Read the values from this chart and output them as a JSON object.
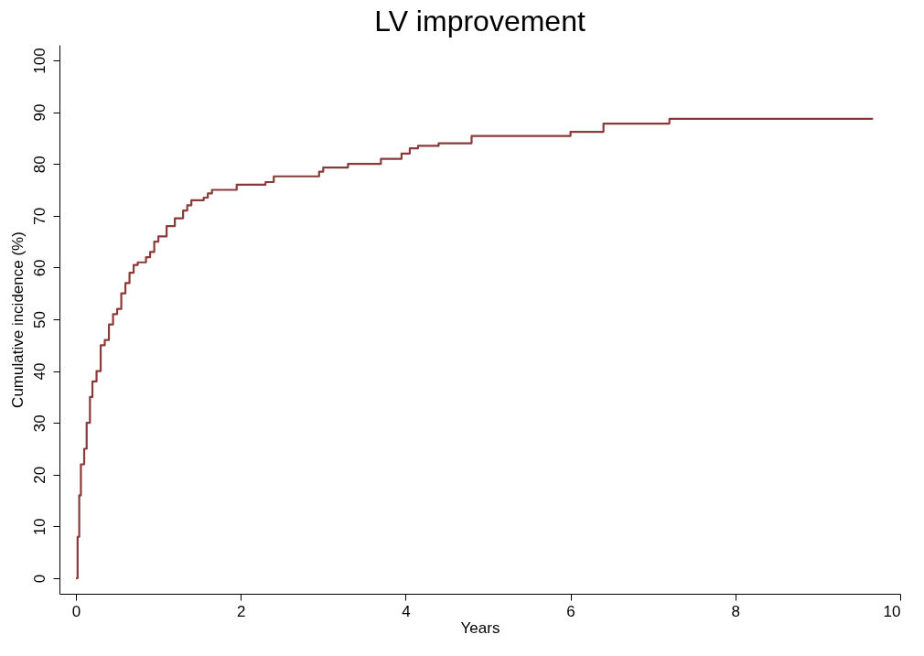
{
  "chart_data": {
    "type": "step",
    "title": "LV improvement",
    "xlabel": "Years",
    "ylabel": "Cumulative incidence (%)",
    "x": [
      0,
      0.02,
      0.04,
      0.06,
      0.1,
      0.13,
      0.17,
      0.2,
      0.25,
      0.3,
      0.35,
      0.4,
      0.45,
      0.5,
      0.55,
      0.6,
      0.65,
      0.7,
      0.75,
      0.85,
      0.9,
      0.95,
      1.0,
      1.1,
      1.2,
      1.3,
      1.35,
      1.4,
      1.55,
      1.6,
      1.65,
      1.95,
      2.3,
      2.4,
      2.95,
      3.0,
      3.3,
      3.7,
      3.95,
      4.05,
      4.15,
      4.4,
      4.8,
      6.0,
      6.4,
      7.2,
      9.67
    ],
    "series": [
      {
        "color": "#8b3a3a",
        "values": [
          0,
          8,
          16,
          22,
          25,
          30,
          35,
          38,
          40,
          45,
          46,
          49,
          51,
          52,
          55,
          57,
          59,
          60.5,
          61,
          62,
          63,
          65,
          66,
          68,
          69.5,
          71,
          72,
          73,
          73.5,
          74.3,
          75,
          76,
          76.5,
          77.6,
          78.5,
          79.3,
          80,
          81,
          82,
          83,
          83.5,
          84,
          85.4,
          86.2,
          87.8,
          88.7,
          88.7
        ]
      }
    ],
    "xlim": [
      -0.2,
      10
    ],
    "ylim": [
      -3,
      103
    ],
    "xticks": [
      0,
      2,
      4,
      6,
      8,
      10
    ],
    "yticks": [
      0,
      10,
      20,
      30,
      40,
      50,
      60,
      70,
      80,
      90,
      100
    ],
    "grid": false,
    "line_style": "solid"
  }
}
